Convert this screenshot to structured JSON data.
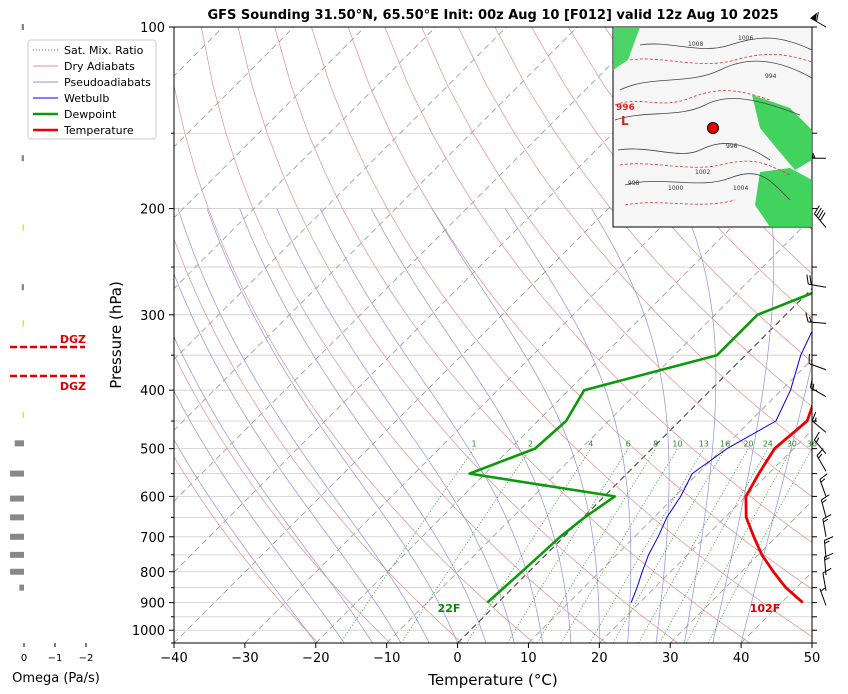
{
  "chart_data": {
    "type": "skew-t sounding",
    "title": "GFS Sounding 31.50°N, 65.50°E Init: 00z Aug 10 [F012] valid 12z Aug 10 2025",
    "xlabel": "Temperature (°C)",
    "ylabel": "Pressure (hPa)",
    "xlim": [
      -40,
      50
    ],
    "ylim": [
      1050,
      100
    ],
    "x_ticks": [
      -40,
      -30,
      -20,
      -10,
      0,
      10,
      20,
      30,
      40,
      50
    ],
    "x_tick_labels": [
      "−40",
      "−30",
      "−20",
      "−10",
      "0",
      "10",
      "20",
      "30",
      "40",
      "50"
    ],
    "y_ticks": [
      100,
      200,
      300,
      400,
      500,
      600,
      700,
      800,
      900,
      1000
    ],
    "legend": {
      "placement": "upper-left",
      "entries": [
        "Sat. Mix. Ratio",
        "Dry Adiabats",
        "Pseudoadiabats",
        "Wetbulb",
        "Dewpoint",
        "Temperature"
      ]
    },
    "mixing_ratio_labels": [
      "1",
      "2",
      "4",
      "6",
      "8",
      "10",
      "13",
      "16",
      "20",
      "24",
      "30",
      "36"
    ],
    "mixing_ratio_values": [
      1,
      2,
      4,
      6,
      8,
      10,
      13,
      16,
      20,
      24,
      30,
      36
    ],
    "series": [
      {
        "name": "Temperature",
        "color": "#ee0000",
        "points": [
          [
            900,
            43.0
          ],
          [
            850,
            38.5
          ],
          [
            800,
            34.5
          ],
          [
            750,
            30.5
          ],
          [
            700,
            26.8
          ],
          [
            650,
            23.0
          ],
          [
            600,
            20.0
          ],
          [
            550,
            18.6
          ],
          [
            500,
            17.3
          ],
          [
            450,
            18.0
          ],
          [
            400,
            15.2
          ],
          [
            350,
            9.8
          ],
          [
            300,
            5.2
          ],
          [
            250,
            2.5
          ],
          [
            200,
            -2.3
          ],
          [
            150,
            -6.8
          ],
          [
            100,
            -11.5
          ]
        ]
      },
      {
        "name": "Dewpoint",
        "color": "#0a9a0a",
        "points": [
          [
            900,
            -1.5
          ],
          [
            800,
            -1.0
          ],
          [
            700,
            -0.5
          ],
          [
            650,
            0.2
          ],
          [
            600,
            1.5
          ],
          [
            550,
            -22.2
          ],
          [
            500,
            -16.5
          ],
          [
            450,
            -16.0
          ],
          [
            400,
            -17.8
          ],
          [
            350,
            -4.0
          ],
          [
            300,
            -4.0
          ],
          [
            250,
            6.3
          ],
          [
            200,
            -1.5
          ],
          [
            150,
            1.0
          ],
          [
            100,
            9.0
          ]
        ]
      },
      {
        "name": "Wetbulb",
        "color": "#0000dd",
        "points": [
          [
            900,
            18.8
          ],
          [
            850,
            17.5
          ],
          [
            800,
            16.0
          ],
          [
            750,
            14.5
          ],
          [
            700,
            13.3
          ],
          [
            650,
            11.8
          ],
          [
            600,
            10.8
          ],
          [
            550,
            9.2
          ],
          [
            500,
            10.6
          ],
          [
            450,
            13.6
          ],
          [
            400,
            11.3
          ],
          [
            350,
            7.8
          ],
          [
            300,
            4.8
          ],
          [
            250,
            2.5
          ],
          [
            200,
            -3.0
          ],
          [
            150,
            -6.8
          ],
          [
            100,
            -11.5
          ]
        ]
      }
    ],
    "surface_labels": {
      "dewpoint": "22F",
      "temperature": "102F"
    },
    "dgz_labels": [
      "DGZ",
      "DGZ"
    ],
    "omega": {
      "xlabel": "Omega (Pa/s)",
      "ticks": [
        "0",
        "−1",
        "−2"
      ],
      "tick_values": [
        0,
        -1,
        -2
      ],
      "values": [
        [
          100,
          -0.05
        ],
        [
          165,
          -0.05
        ],
        [
          215,
          -0.02
        ],
        [
          270,
          -0.05
        ],
        [
          310,
          -0.02
        ],
        [
          440,
          -0.03
        ],
        [
          490,
          -0.2
        ],
        [
          550,
          -0.3
        ],
        [
          605,
          -0.3
        ],
        [
          650,
          -0.3
        ],
        [
          700,
          -0.3
        ],
        [
          750,
          -0.3
        ],
        [
          800,
          -0.3
        ],
        [
          850,
          -0.1
        ]
      ]
    },
    "wind_barbs": [
      {
        "p": 100,
        "spd": 60,
        "dir": 300
      },
      {
        "p": 165,
        "spd": 55,
        "dir": 270
      },
      {
        "p": 215,
        "spd": 40,
        "dir": 320
      },
      {
        "p": 270,
        "spd": 20,
        "dir": 280
      },
      {
        "p": 310,
        "spd": 15,
        "dir": 275
      },
      {
        "p": 370,
        "spd": 15,
        "dir": 290
      },
      {
        "p": 410,
        "spd": 15,
        "dir": 300
      },
      {
        "p": 470,
        "spd": 15,
        "dir": 310
      },
      {
        "p": 510,
        "spd": 15,
        "dir": 320
      },
      {
        "p": 545,
        "spd": 15,
        "dir": 330
      },
      {
        "p": 600,
        "spd": 15,
        "dir": 340
      },
      {
        "p": 650,
        "spd": 15,
        "dir": 345
      },
      {
        "p": 700,
        "spd": 15,
        "dir": 350
      },
      {
        "p": 760,
        "spd": 15,
        "dir": 355
      },
      {
        "p": 810,
        "spd": 15,
        "dir": 355
      },
      {
        "p": 860,
        "spd": 10,
        "dir": 350
      },
      {
        "p": 910,
        "spd": 5,
        "dir": 340
      }
    ],
    "inset_map_labels": [
      "1008",
      "1006",
      "1004",
      "1002",
      "1000",
      "998",
      "996",
      "994"
    ],
    "inset_low_label": "996",
    "inset_low_letter": "L"
  },
  "colors": {
    "temperature": "#ee0000",
    "dewpoint": "#0a9a0a",
    "wetbulb": "#0000dd",
    "dry_adiabat": "#e09090",
    "moist_adiabat": "#9090e0",
    "mixing_ratio": "#2a8a2a",
    "isotherm": "#888888",
    "grid": "#cccccc",
    "map_land": "#f6f6f6",
    "map_green": "#22cc44",
    "map_dot": "#ee0000"
  }
}
